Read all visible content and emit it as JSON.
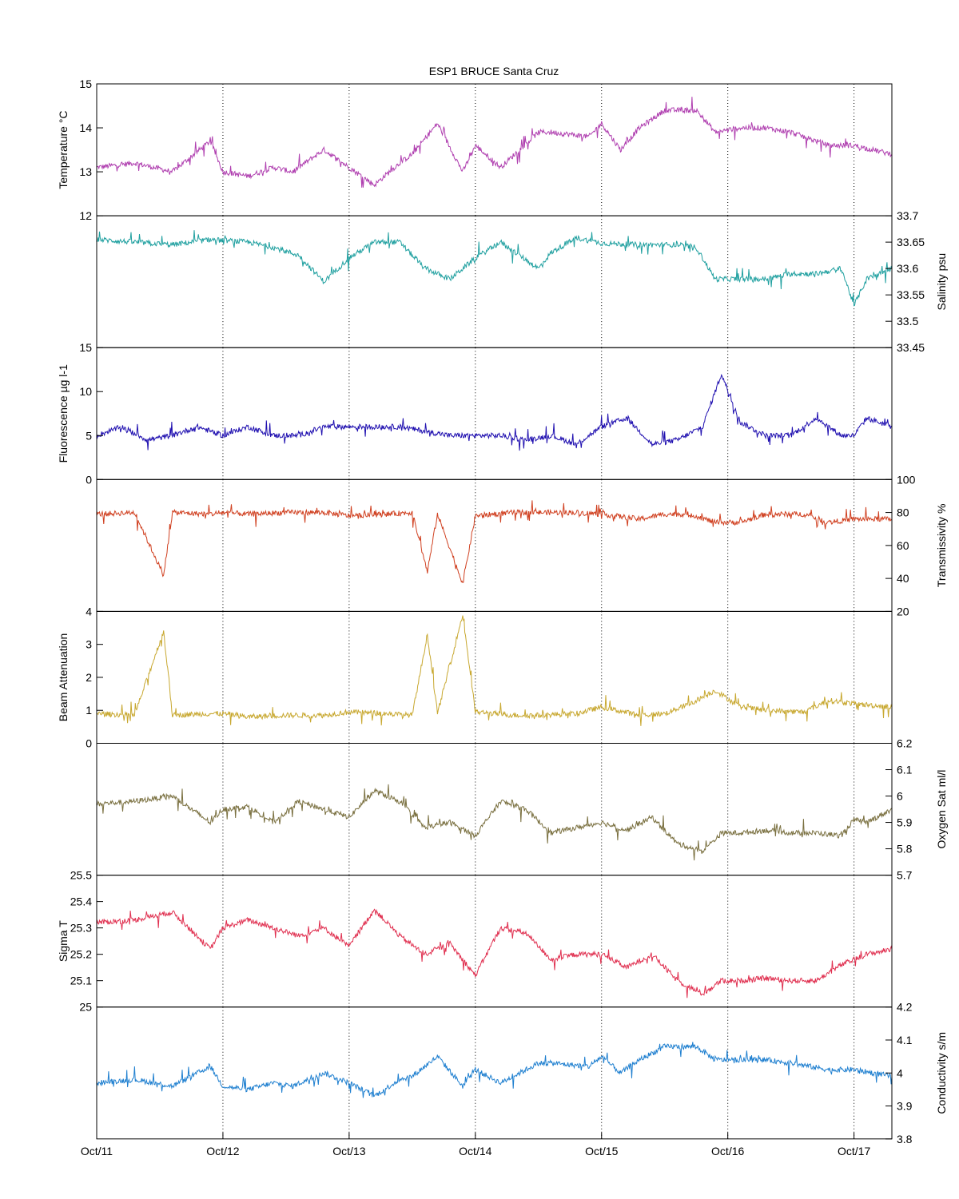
{
  "title": "ESP1 BRUCE Santa Cruz",
  "x_ticks": [
    "Oct/11",
    "Oct/12",
    "Oct/13",
    "Oct/14",
    "Oct/15",
    "Oct/16",
    "Oct/17"
  ],
  "chart_data": [
    {
      "type": "line",
      "id": "temperature",
      "ylabel": "Temperature °C",
      "axis_side": "left",
      "ylim": [
        12,
        15
      ],
      "yticks": [
        12,
        13,
        14,
        15
      ],
      "xlim": [
        0,
        6.3
      ],
      "grid": "vertical dotted",
      "color": "#b040b0",
      "x": [
        0,
        0.3,
        0.6,
        0.9,
        1.0,
        1.2,
        1.4,
        1.55,
        1.8,
        2.0,
        2.2,
        2.4,
        2.5,
        2.7,
        2.9,
        3.0,
        3.2,
        3.5,
        3.6,
        3.9,
        4.0,
        4.15,
        4.3,
        4.5,
        4.75,
        4.9,
        5.1,
        5.3,
        5.5,
        5.8,
        6.0,
        6.3
      ],
      "y": [
        13.1,
        13.2,
        13.0,
        13.7,
        13.0,
        12.9,
        13.1,
        13.0,
        13.5,
        13.1,
        12.7,
        13.2,
        13.4,
        14.1,
        13.0,
        13.6,
        13.1,
        13.9,
        13.9,
        13.8,
        14.1,
        13.5,
        14.0,
        14.4,
        14.4,
        13.9,
        14.0,
        14.0,
        13.9,
        13.6,
        13.6,
        13.4
      ]
    },
    {
      "type": "line",
      "id": "salinity",
      "ylabel": "Salinity psu",
      "axis_side": "right",
      "ylim": [
        33.45,
        33.7
      ],
      "yticks": [
        33.45,
        33.5,
        33.55,
        33.6,
        33.65,
        33.7
      ],
      "xlim": [
        0,
        6.3
      ],
      "color": "#20a0a0",
      "x": [
        0,
        0.3,
        0.6,
        0.9,
        1.2,
        1.4,
        1.6,
        1.8,
        2.0,
        2.2,
        2.4,
        2.6,
        2.8,
        3.0,
        3.2,
        3.5,
        3.6,
        3.8,
        4.0,
        4.3,
        4.6,
        4.75,
        4.9,
        5.1,
        5.3,
        5.5,
        5.7,
        5.9,
        6.0,
        6.1,
        6.3
      ],
      "y": [
        33.655,
        33.65,
        33.645,
        33.655,
        33.65,
        33.64,
        33.625,
        33.575,
        33.62,
        33.65,
        33.65,
        33.6,
        33.58,
        33.62,
        33.65,
        33.6,
        33.63,
        33.658,
        33.648,
        33.645,
        33.645,
        33.64,
        33.58,
        33.58,
        33.58,
        33.59,
        33.59,
        33.6,
        33.53,
        33.58,
        33.6
      ]
    },
    {
      "type": "line",
      "id": "fluorescence",
      "ylabel": "Fluorescence µg l-1",
      "axis_side": "left",
      "ylim": [
        0,
        15
      ],
      "yticks": [
        0,
        5,
        10,
        15
      ],
      "xlim": [
        0,
        6.3
      ],
      "color": "#2010b0",
      "x": [
        0,
        0.2,
        0.4,
        0.6,
        0.8,
        1.0,
        1.2,
        1.4,
        1.6,
        1.8,
        2.0,
        2.2,
        2.4,
        2.6,
        2.8,
        3.0,
        3.2,
        3.4,
        3.6,
        3.8,
        4.0,
        4.2,
        4.4,
        4.6,
        4.8,
        4.95,
        5.1,
        5.3,
        5.5,
        5.7,
        5.9,
        6.0,
        6.1,
        6.3
      ],
      "y": [
        5,
        6,
        4.5,
        5,
        6,
        5,
        6,
        5,
        5,
        6,
        6,
        6,
        6,
        5.5,
        5,
        5,
        5,
        4.5,
        5,
        4,
        6,
        7,
        4,
        4.5,
        6,
        12,
        6.5,
        5,
        5,
        7,
        5,
        5,
        7,
        6
      ]
    },
    {
      "type": "line",
      "id": "transmissivity",
      "ylabel": "Transmissivity %",
      "axis_side": "right",
      "ylim": [
        20,
        100
      ],
      "yticks": [
        20,
        40,
        60,
        80,
        100
      ],
      "xlim": [
        0,
        6.3
      ],
      "color": "#d04020",
      "x": [
        0,
        0.3,
        0.53,
        0.6,
        0.9,
        1.0,
        1.2,
        1.5,
        1.8,
        2.0,
        2.3,
        2.5,
        2.62,
        2.7,
        2.9,
        3.0,
        3.3,
        3.5,
        3.8,
        4.0,
        4.3,
        4.5,
        4.7,
        4.9,
        5.1,
        5.3,
        5.6,
        5.8,
        6.0,
        6.3
      ],
      "y": [
        79,
        80,
        42,
        80,
        79,
        80,
        79,
        80,
        80,
        78,
        79,
        80,
        44,
        79,
        37,
        78,
        80,
        80,
        80,
        79,
        76,
        79,
        79,
        74,
        74,
        79,
        79,
        74,
        76,
        76
      ]
    },
    {
      "type": "line",
      "id": "beam_attenuation",
      "ylabel": "Beam Attenuation",
      "axis_side": "left",
      "ylim": [
        0,
        4
      ],
      "yticks": [
        0,
        1,
        2,
        3,
        4
      ],
      "xlim": [
        0,
        6.3
      ],
      "color": "#c8a830",
      "x": [
        0,
        0.3,
        0.53,
        0.6,
        0.9,
        1.0,
        1.2,
        1.5,
        1.8,
        2.0,
        2.3,
        2.5,
        2.62,
        2.7,
        2.9,
        3.0,
        3.3,
        3.5,
        3.8,
        4.0,
        4.3,
        4.5,
        4.7,
        4.9,
        5.1,
        5.3,
        5.6,
        5.8,
        6.0,
        6.3
      ],
      "y": [
        0.9,
        0.85,
        3.4,
        0.85,
        0.9,
        0.9,
        0.8,
        0.85,
        0.85,
        0.95,
        0.9,
        0.85,
        3.3,
        0.9,
        3.9,
        0.95,
        0.85,
        0.85,
        0.9,
        1.1,
        0.85,
        0.9,
        1.2,
        1.6,
        1.1,
        1.0,
        0.95,
        1.3,
        1.2,
        1.1
      ]
    },
    {
      "type": "line",
      "id": "oxygen_sat",
      "ylabel": "Oxygen Sat ml/l",
      "axis_side": "right",
      "ylim": [
        5.7,
        6.2
      ],
      "yticks": [
        5.7,
        5.8,
        5.9,
        6.0,
        6.1,
        6.2
      ],
      "xlim": [
        0,
        6.3
      ],
      "color": "#7a7040",
      "x": [
        0,
        0.3,
        0.6,
        0.9,
        1.0,
        1.2,
        1.4,
        1.6,
        1.8,
        2.0,
        2.2,
        2.4,
        2.6,
        2.8,
        3.0,
        3.2,
        3.4,
        3.6,
        3.8,
        4.0,
        4.2,
        4.4,
        4.6,
        4.8,
        4.95,
        5.1,
        5.3,
        5.5,
        5.7,
        5.9,
        6.0,
        6.1,
        6.3
      ],
      "y": [
        5.97,
        5.98,
        6.0,
        5.9,
        5.95,
        5.96,
        5.9,
        5.98,
        5.95,
        5.92,
        6.02,
        5.98,
        5.88,
        5.9,
        5.85,
        5.98,
        5.95,
        5.86,
        5.88,
        5.9,
        5.87,
        5.92,
        5.82,
        5.79,
        5.86,
        5.86,
        5.87,
        5.86,
        5.86,
        5.85,
        5.91,
        5.9,
        5.95
      ]
    },
    {
      "type": "line",
      "id": "sigma_t",
      "ylabel": "Sigma T",
      "axis_side": "left",
      "ylim": [
        25,
        25.5
      ],
      "yticks": [
        25,
        25.1,
        25.2,
        25.3,
        25.4,
        25.5
      ],
      "xlim": [
        0,
        6.3
      ],
      "color": "#e03050",
      "x": [
        0,
        0.3,
        0.6,
        0.9,
        1.0,
        1.2,
        1.4,
        1.6,
        1.8,
        2.0,
        2.2,
        2.4,
        2.6,
        2.8,
        3.0,
        3.2,
        3.4,
        3.6,
        3.8,
        4.0,
        4.2,
        4.4,
        4.6,
        4.8,
        4.95,
        5.1,
        5.3,
        5.5,
        5.7,
        5.9,
        6.0,
        6.1,
        6.3
      ],
      "y": [
        25.32,
        25.33,
        25.36,
        25.22,
        25.3,
        25.33,
        25.3,
        25.27,
        25.3,
        25.23,
        25.37,
        25.27,
        25.2,
        25.24,
        25.12,
        25.3,
        25.28,
        25.18,
        25.2,
        25.2,
        25.15,
        25.2,
        25.1,
        25.05,
        25.1,
        25.1,
        25.11,
        25.1,
        25.1,
        25.16,
        25.18,
        25.2,
        25.22
      ]
    },
    {
      "type": "line",
      "id": "conductivity",
      "ylabel": "Conductivity s/m",
      "axis_side": "right",
      "ylim": [
        3.8,
        4.2
      ],
      "yticks": [
        3.8,
        3.9,
        4.0,
        4.1,
        4.2
      ],
      "xlim": [
        0,
        6.3
      ],
      "color": "#2080d0",
      "x": [
        0,
        0.3,
        0.6,
        0.9,
        1.0,
        1.2,
        1.4,
        1.55,
        1.8,
        2.0,
        2.2,
        2.4,
        2.5,
        2.7,
        2.9,
        3.0,
        3.2,
        3.5,
        3.6,
        3.9,
        4.0,
        4.15,
        4.3,
        4.5,
        4.75,
        4.9,
        5.1,
        5.3,
        5.5,
        5.8,
        6.0,
        6.3
      ],
      "y": [
        3.97,
        3.98,
        3.96,
        4.02,
        3.96,
        3.95,
        3.97,
        3.96,
        4.0,
        3.97,
        3.93,
        3.98,
        3.99,
        4.05,
        3.96,
        4.01,
        3.97,
        4.03,
        4.03,
        4.02,
        4.05,
        4.0,
        4.04,
        4.08,
        4.08,
        4.04,
        4.04,
        4.04,
        4.03,
        4.01,
        4.01,
        3.99
      ]
    }
  ]
}
